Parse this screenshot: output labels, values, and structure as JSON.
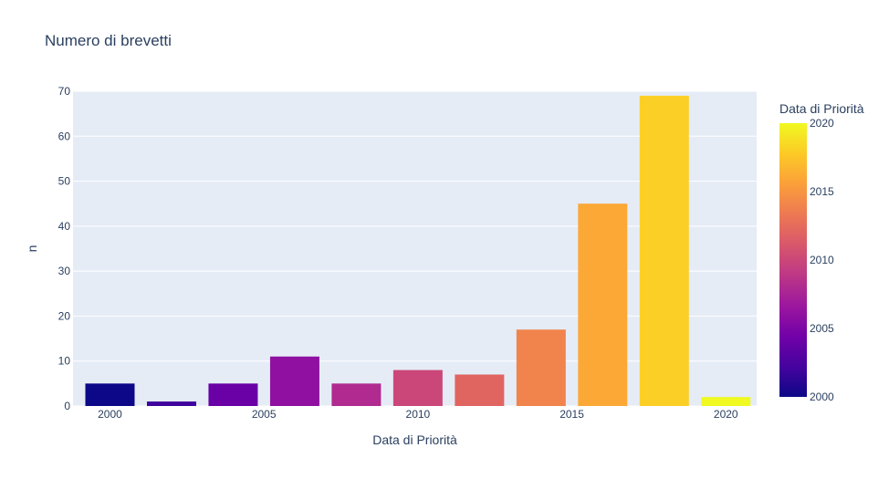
{
  "chart_data": {
    "type": "bar",
    "title": "Numero di brevetti",
    "xlabel": "Data di Priorità",
    "ylabel": "n",
    "x": [
      2000,
      2002,
      2004,
      2006,
      2008,
      2010,
      2012,
      2014,
      2016,
      2018,
      2020
    ],
    "values": [
      5,
      1,
      5,
      11,
      5,
      8,
      7,
      17,
      45,
      69,
      2
    ],
    "xlim": [
      1998.8,
      2021
    ],
    "ylim": [
      0,
      70
    ],
    "x_ticks": [
      2000,
      2005,
      2010,
      2015,
      2020
    ],
    "y_ticks": [
      0,
      10,
      20,
      30,
      40,
      50,
      60,
      70
    ],
    "grid": true,
    "colorbar": {
      "title": "Data di Priorità",
      "range": [
        2000,
        2020
      ],
      "ticks": [
        2000,
        2005,
        2010,
        2015,
        2020
      ],
      "colorscale": [
        "#0d0887",
        "#46039f",
        "#7201a8",
        "#9c179e",
        "#bd3786",
        "#d8576b",
        "#ed7953",
        "#fb9f3a",
        "#fdca26",
        "#f0f921"
      ]
    },
    "plot_background": "#e5ecf6"
  }
}
